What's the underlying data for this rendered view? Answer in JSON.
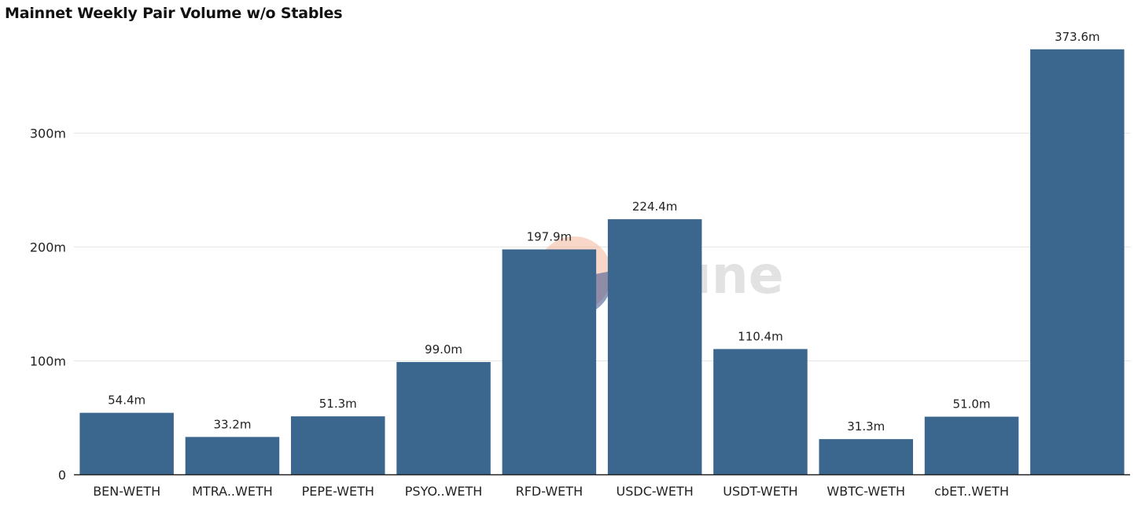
{
  "page": {
    "watermark": "Dune"
  },
  "colors": {
    "bar": "#3b668d",
    "grid": "#e6e6e6",
    "axis": "#222222",
    "watermark_orange": "#f3b49a",
    "watermark_blue": "#3b4f8a"
  },
  "chart_data": {
    "type": "bar",
    "title": "Mainnet Weekly Pair Volume w/o Stables",
    "xlabel": "",
    "ylabel": "",
    "ylim": [
      0,
      390
    ],
    "yticks": [
      0,
      100,
      200,
      300
    ],
    "ytick_labels": [
      "0",
      "100m",
      "200m",
      "300m"
    ],
    "grid": true,
    "categories": [
      "BEN-WETH",
      "MTRA..WETH",
      "PEPE-WETH",
      "PSYO..WETH",
      "RFD-WETH",
      "USDC-WETH",
      "USDT-WETH",
      "WBTC-WETH",
      "cbET..WETH",
      ""
    ],
    "values": [
      54.4,
      33.2,
      51.3,
      99.0,
      197.9,
      224.4,
      110.4,
      31.3,
      51.0,
      373.6
    ],
    "value_labels": [
      "54.4m",
      "33.2m",
      "51.3m",
      "99.0m",
      "197.9m",
      "224.4m",
      "110.4m",
      "31.3m",
      "51.0m",
      "373.6m"
    ]
  }
}
